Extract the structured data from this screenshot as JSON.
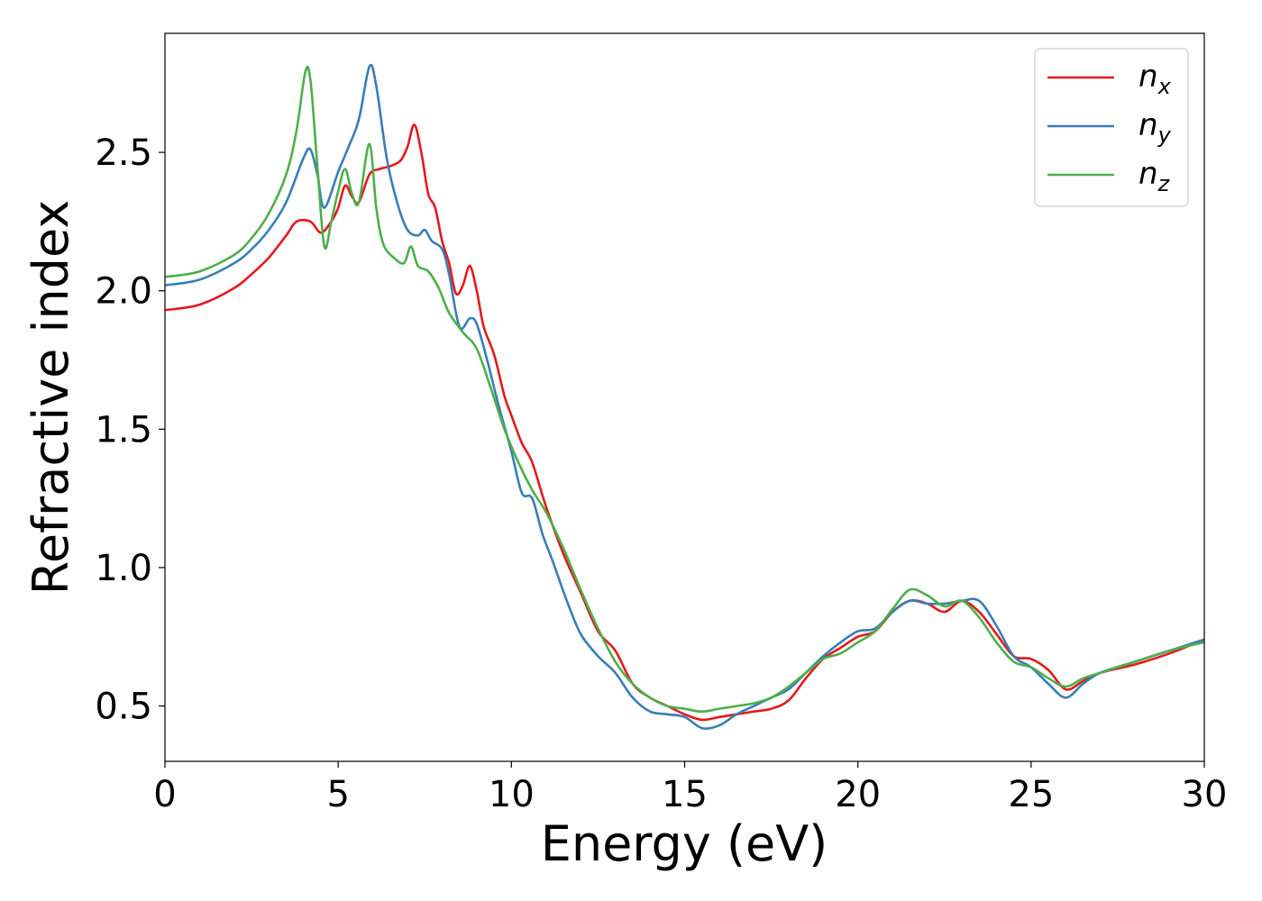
{
  "chart_data": {
    "type": "line",
    "xlabel": "Energy (eV)",
    "ylabel": "Refractive index",
    "xlim": [
      0,
      30
    ],
    "ylim": [
      0.3,
      2.93
    ],
    "xticks": [
      "0",
      "5",
      "10",
      "15",
      "20",
      "25",
      "30"
    ],
    "yticks": [
      "0.5",
      "1.0",
      "1.5",
      "2.0",
      "2.5"
    ],
    "grid": false,
    "legend_position": "top-right",
    "series": [
      {
        "name": "n",
        "subscript": "x",
        "color": "#e41a1c",
        "x": [
          0,
          1,
          2,
          2.5,
          3,
          3.5,
          3.8,
          4.2,
          4.5,
          4.8,
          5,
          5.2,
          5.4,
          5.6,
          5.9,
          6.2,
          6.5,
          6.8,
          7,
          7.2,
          7.4,
          7.6,
          7.8,
          8,
          8.2,
          8.4,
          8.6,
          8.8,
          9,
          9.2,
          9.5,
          9.8,
          10,
          10.3,
          10.6,
          11,
          11.5,
          12,
          12.5,
          13,
          13.5,
          14,
          14.5,
          15,
          15.5,
          16,
          16.5,
          17,
          17.5,
          18,
          18.5,
          19,
          19.5,
          20,
          20.5,
          21,
          21.5,
          22,
          22.5,
          23,
          23.5,
          24,
          24.5,
          25,
          25.5,
          26,
          26.5,
          27,
          28,
          29,
          30
        ],
        "y": [
          1.93,
          1.95,
          2.01,
          2.06,
          2.12,
          2.2,
          2.25,
          2.25,
          2.21,
          2.25,
          2.3,
          2.38,
          2.34,
          2.32,
          2.42,
          2.44,
          2.45,
          2.47,
          2.52,
          2.6,
          2.5,
          2.35,
          2.3,
          2.18,
          2.1,
          1.99,
          2.02,
          2.09,
          2.0,
          1.87,
          1.77,
          1.62,
          1.55,
          1.45,
          1.38,
          1.22,
          1.05,
          0.91,
          0.77,
          0.7,
          0.58,
          0.53,
          0.5,
          0.47,
          0.45,
          0.46,
          0.47,
          0.48,
          0.49,
          0.52,
          0.6,
          0.67,
          0.71,
          0.75,
          0.77,
          0.84,
          0.88,
          0.87,
          0.84,
          0.88,
          0.84,
          0.76,
          0.68,
          0.67,
          0.63,
          0.56,
          0.59,
          0.62,
          0.65,
          0.69,
          0.74
        ]
      },
      {
        "name": "n",
        "subscript": "y",
        "color": "#377eb8",
        "x": [
          0,
          1,
          2,
          2.5,
          3,
          3.5,
          4,
          4.2,
          4.4,
          4.6,
          5,
          5.3,
          5.6,
          5.9,
          6.1,
          6.4,
          6.7,
          7,
          7.3,
          7.5,
          7.7,
          8,
          8.2,
          8.5,
          8.8,
          9,
          9.3,
          9.6,
          10,
          10.3,
          10.6,
          10.9,
          11.2,
          11.6,
          12,
          12.5,
          13,
          13.5,
          14,
          14.5,
          15,
          15.5,
          16,
          16.5,
          17,
          17.5,
          18,
          18.5,
          19,
          19.5,
          20,
          20.5,
          21,
          21.5,
          22,
          22.5,
          23,
          23.5,
          24,
          24.5,
          25,
          25.5,
          26,
          26.5,
          27,
          28,
          29,
          30
        ],
        "y": [
          2.02,
          2.04,
          2.1,
          2.15,
          2.22,
          2.32,
          2.48,
          2.51,
          2.42,
          2.3,
          2.43,
          2.52,
          2.62,
          2.81,
          2.74,
          2.48,
          2.32,
          2.22,
          2.2,
          2.22,
          2.18,
          2.15,
          2.06,
          1.87,
          1.9,
          1.88,
          1.75,
          1.6,
          1.42,
          1.27,
          1.25,
          1.12,
          1.02,
          0.88,
          0.76,
          0.68,
          0.62,
          0.53,
          0.48,
          0.47,
          0.46,
          0.42,
          0.43,
          0.47,
          0.5,
          0.53,
          0.56,
          0.62,
          0.68,
          0.73,
          0.77,
          0.78,
          0.84,
          0.88,
          0.87,
          0.87,
          0.88,
          0.88,
          0.79,
          0.68,
          0.64,
          0.58,
          0.53,
          0.58,
          0.62,
          0.66,
          0.7,
          0.74
        ]
      },
      {
        "name": "n",
        "subscript": "z",
        "color": "#4daf4a",
        "x": [
          0,
          1,
          2,
          2.5,
          3,
          3.5,
          3.8,
          4.05,
          4.2,
          4.4,
          4.6,
          4.8,
          5,
          5.2,
          5.4,
          5.6,
          5.9,
          6.1,
          6.3,
          6.6,
          6.9,
          7.1,
          7.3,
          7.6,
          7.9,
          8.2,
          8.6,
          9,
          9.4,
          9.8,
          10.2,
          10.6,
          11,
          11.5,
          12,
          12.5,
          13,
          13.5,
          14,
          14.5,
          15,
          15.5,
          16,
          16.5,
          17,
          17.5,
          18,
          18.5,
          19,
          19.5,
          20,
          20.5,
          21,
          21.5,
          22,
          22.5,
          23,
          23.5,
          24,
          24.5,
          25,
          25.5,
          26,
          26.5,
          27,
          28,
          29,
          30
        ],
        "y": [
          2.05,
          2.07,
          2.13,
          2.19,
          2.28,
          2.42,
          2.58,
          2.79,
          2.76,
          2.45,
          2.16,
          2.25,
          2.36,
          2.44,
          2.35,
          2.32,
          2.53,
          2.3,
          2.17,
          2.12,
          2.1,
          2.16,
          2.09,
          2.07,
          2.01,
          1.92,
          1.85,
          1.79,
          1.65,
          1.5,
          1.38,
          1.28,
          1.2,
          1.07,
          0.92,
          0.78,
          0.66,
          0.58,
          0.53,
          0.5,
          0.49,
          0.48,
          0.49,
          0.5,
          0.51,
          0.53,
          0.57,
          0.62,
          0.67,
          0.69,
          0.73,
          0.77,
          0.85,
          0.92,
          0.9,
          0.86,
          0.88,
          0.82,
          0.73,
          0.66,
          0.64,
          0.6,
          0.57,
          0.6,
          0.62,
          0.66,
          0.7,
          0.73
        ]
      }
    ]
  }
}
